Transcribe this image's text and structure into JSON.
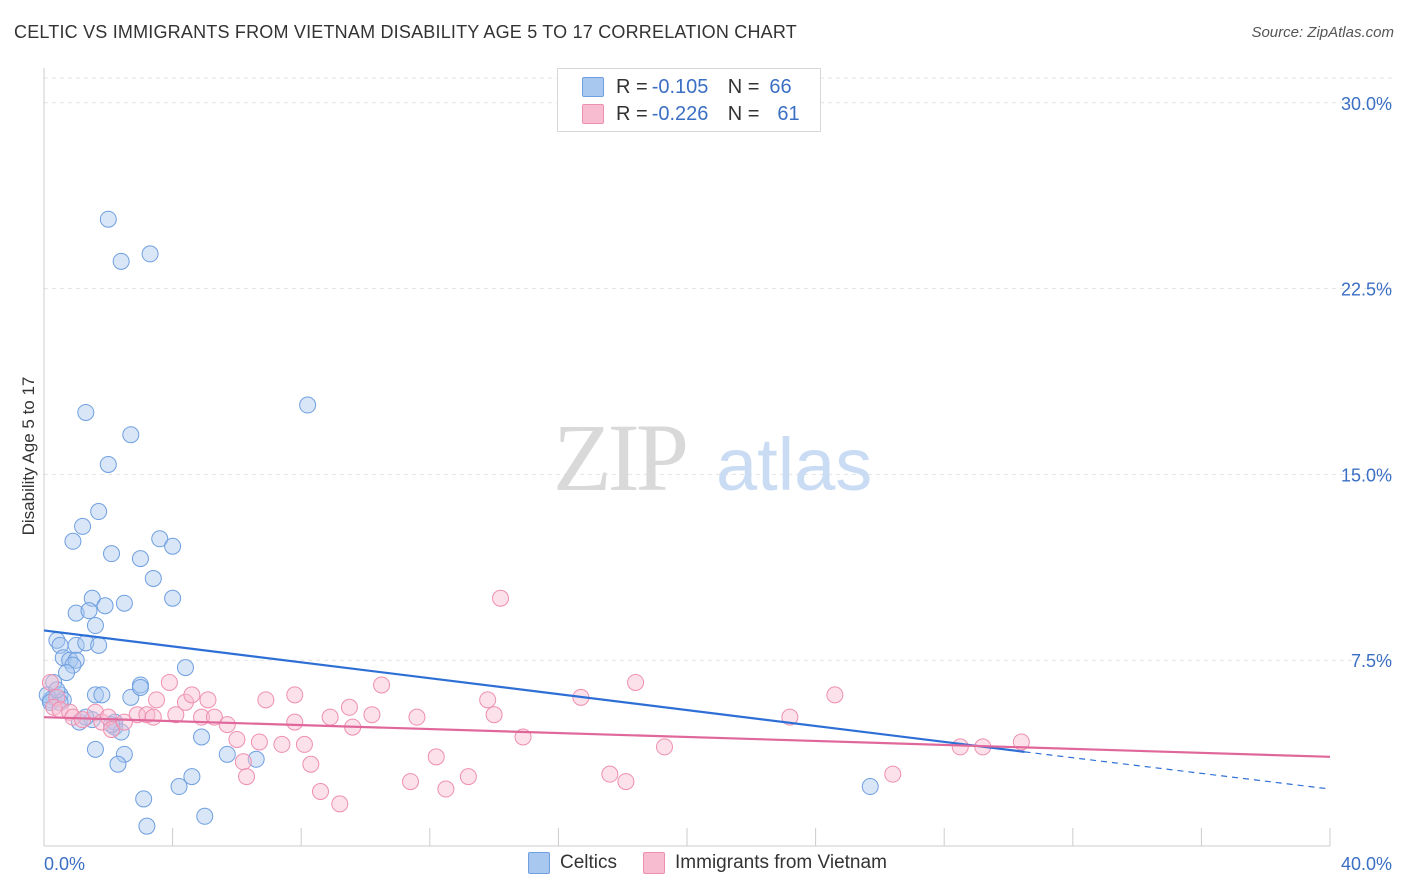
{
  "header": {
    "title": "CELTIC VS IMMIGRANTS FROM VIETNAM DISABILITY AGE 5 TO 17 CORRELATION CHART",
    "source": "Source: ZipAtlas.com"
  },
  "watermark": {
    "zip": "ZIP",
    "atlas": "atlas"
  },
  "legend": {
    "r_label": "R =",
    "n_label": "N =",
    "series": [
      {
        "name": "Celtics",
        "r": "-0.105",
        "n": "66",
        "fill": "#a8c8f0",
        "stroke": "#6f9fe0"
      },
      {
        "name": "Immigrants from Vietnam",
        "r": "-0.226",
        "n": "61",
        "fill": "#f8bcd0",
        "stroke": "#ee8fb0"
      }
    ]
  },
  "chart_data": {
    "type": "scatter",
    "title": "CELTIC VS IMMIGRANTS FROM VIETNAM DISABILITY AGE 5 TO 17 CORRELATION CHART",
    "xlabel": "",
    "ylabel": "Disability Age 5 to 17",
    "xlim": [
      0,
      40
    ],
    "ylim": [
      0,
      31
    ],
    "x_tick_labels": [
      "0.0%",
      "40.0%"
    ],
    "y_ticks": [
      7.5,
      15.0,
      22.5,
      30.0
    ],
    "y_tick_labels": [
      "7.5%",
      "15.0%",
      "22.5%",
      "30.0%"
    ],
    "grid": true,
    "series": [
      {
        "name": "Celtics",
        "color": "#6f9fe0",
        "line_color": "#2e6fd6",
        "trend": {
          "x": [
            0,
            30.5
          ],
          "y": [
            8.7,
            3.8
          ]
        },
        "trend_dashed": {
          "x": [
            30.5,
            40
          ],
          "y": [
            3.8,
            2.3
          ]
        },
        "points": [
          [
            2.0,
            25.3
          ],
          [
            2.4,
            23.6
          ],
          [
            3.3,
            23.9
          ],
          [
            1.3,
            17.5
          ],
          [
            8.2,
            17.8
          ],
          [
            2.7,
            16.6
          ],
          [
            2.0,
            15.4
          ],
          [
            1.7,
            13.5
          ],
          [
            1.2,
            12.9
          ],
          [
            0.9,
            12.3
          ],
          [
            3.6,
            12.4
          ],
          [
            2.1,
            11.8
          ],
          [
            4.0,
            12.1
          ],
          [
            3.0,
            11.6
          ],
          [
            3.4,
            10.8
          ],
          [
            1.5,
            10.0
          ],
          [
            2.5,
            9.8
          ],
          [
            1.9,
            9.7
          ],
          [
            4.0,
            10.0
          ],
          [
            1.0,
            9.4
          ],
          [
            1.4,
            9.5
          ],
          [
            1.6,
            8.9
          ],
          [
            0.4,
            8.3
          ],
          [
            0.5,
            8.1
          ],
          [
            1.0,
            8.1
          ],
          [
            1.3,
            8.2
          ],
          [
            1.7,
            8.1
          ],
          [
            0.6,
            7.6
          ],
          [
            0.8,
            7.5
          ],
          [
            1.0,
            7.5
          ],
          [
            0.9,
            7.3
          ],
          [
            0.7,
            7.0
          ],
          [
            4.4,
            7.2
          ],
          [
            0.3,
            6.6
          ],
          [
            0.3,
            6.0
          ],
          [
            0.5,
            6.1
          ],
          [
            0.2,
            5.9
          ],
          [
            0.6,
            5.9
          ],
          [
            0.1,
            6.1
          ],
          [
            1.6,
            6.1
          ],
          [
            1.8,
            6.1
          ],
          [
            2.7,
            6.0
          ],
          [
            3.0,
            6.5
          ],
          [
            3.0,
            6.4
          ],
          [
            1.1,
            5.0
          ],
          [
            1.5,
            5.1
          ],
          [
            2.2,
            4.8
          ],
          [
            2.2,
            5.0
          ],
          [
            2.4,
            4.6
          ],
          [
            1.6,
            3.9
          ],
          [
            2.5,
            3.7
          ],
          [
            2.3,
            3.3
          ],
          [
            4.9,
            4.4
          ],
          [
            5.7,
            3.7
          ],
          [
            6.6,
            3.5
          ],
          [
            4.6,
            2.8
          ],
          [
            4.2,
            2.4
          ],
          [
            3.1,
            1.9
          ],
          [
            3.2,
            0.8
          ],
          [
            5.0,
            1.2
          ],
          [
            25.7,
            2.4
          ],
          [
            0.5,
            5.8
          ],
          [
            0.2,
            5.8
          ],
          [
            2.1,
            4.9
          ],
          [
            1.3,
            5.2
          ],
          [
            0.4,
            6.3
          ]
        ]
      },
      {
        "name": "Immigrants from Vietnam",
        "color": "#ee8fb0",
        "line_color": "#e0679a",
        "trend": {
          "x": [
            0,
            40
          ],
          "y": [
            5.2,
            3.6
          ]
        },
        "points": [
          [
            0.2,
            6.6
          ],
          [
            0.4,
            6.0
          ],
          [
            0.3,
            5.6
          ],
          [
            0.5,
            5.5
          ],
          [
            0.8,
            5.4
          ],
          [
            0.9,
            5.2
          ],
          [
            1.2,
            5.1
          ],
          [
            1.6,
            5.4
          ],
          [
            1.8,
            5.0
          ],
          [
            2.0,
            5.2
          ],
          [
            2.1,
            4.7
          ],
          [
            2.5,
            5.0
          ],
          [
            2.9,
            5.3
          ],
          [
            3.2,
            5.3
          ],
          [
            3.4,
            5.2
          ],
          [
            3.5,
            5.9
          ],
          [
            3.9,
            6.6
          ],
          [
            4.1,
            5.3
          ],
          [
            4.4,
            5.8
          ],
          [
            4.6,
            6.1
          ],
          [
            4.9,
            5.2
          ],
          [
            5.1,
            5.9
          ],
          [
            5.3,
            5.2
          ],
          [
            5.7,
            4.9
          ],
          [
            6.0,
            4.3
          ],
          [
            6.2,
            3.4
          ],
          [
            6.3,
            2.8
          ],
          [
            6.7,
            4.2
          ],
          [
            6.9,
            5.9
          ],
          [
            7.4,
            4.1
          ],
          [
            7.8,
            5.0
          ],
          [
            7.8,
            6.1
          ],
          [
            8.1,
            4.1
          ],
          [
            8.3,
            3.3
          ],
          [
            8.6,
            2.2
          ],
          [
            8.9,
            5.2
          ],
          [
            9.2,
            1.7
          ],
          [
            9.5,
            5.6
          ],
          [
            9.6,
            4.8
          ],
          [
            10.2,
            5.3
          ],
          [
            10.5,
            6.5
          ],
          [
            11.4,
            2.6
          ],
          [
            11.6,
            5.2
          ],
          [
            12.2,
            3.6
          ],
          [
            12.5,
            2.3
          ],
          [
            13.2,
            2.8
          ],
          [
            13.8,
            5.9
          ],
          [
            14.0,
            5.3
          ],
          [
            14.2,
            10.0
          ],
          [
            14.9,
            4.4
          ],
          [
            16.7,
            6.0
          ],
          [
            17.6,
            2.9
          ],
          [
            18.1,
            2.6
          ],
          [
            18.4,
            6.6
          ],
          [
            19.3,
            4.0
          ],
          [
            23.2,
            5.2
          ],
          [
            24.6,
            6.1
          ],
          [
            26.4,
            2.9
          ],
          [
            28.5,
            4.0
          ],
          [
            29.2,
            4.0
          ],
          [
            30.4,
            4.2
          ]
        ]
      }
    ]
  }
}
